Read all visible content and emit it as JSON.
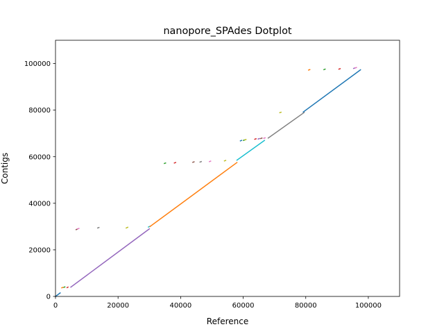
{
  "chart_data": {
    "type": "line",
    "title": "nanopore_SPAdes Dotplot",
    "xlabel": "Reference",
    "ylabel": "Contigs",
    "xlim": [
      0,
      110000
    ],
    "ylim": [
      0,
      110000
    ],
    "xticks": [
      0,
      20000,
      40000,
      60000,
      80000,
      100000
    ],
    "yticks": [
      0,
      20000,
      40000,
      60000,
      80000,
      100000
    ],
    "xtick_labels": [
      "0",
      "20000",
      "40000",
      "60000",
      "80000",
      "100000"
    ],
    "ytick_labels": [
      "0",
      "20000",
      "40000",
      "60000",
      "80000",
      "100000"
    ],
    "grid": false,
    "legend": "none",
    "segments": [
      {
        "x": [
          0,
          1500
        ],
        "y": [
          0,
          1500
        ],
        "color": "#1f77b4"
      },
      {
        "x": [
          2000,
          2400
        ],
        "y": [
          3700,
          3900
        ],
        "color": "#ff7f0e"
      },
      {
        "x": [
          2700,
          3000
        ],
        "y": [
          3900,
          4100
        ],
        "color": "#2ca02c"
      },
      {
        "x": [
          3700,
          4000
        ],
        "y": [
          3800,
          4000
        ],
        "color": "#d62728"
      },
      {
        "x": [
          4900,
          30000
        ],
        "y": [
          4000,
          29000
        ],
        "color": "#9467bd"
      },
      {
        "x": [
          6600,
          7000
        ],
        "y": [
          28700,
          28900
        ],
        "color": "#8c564b"
      },
      {
        "x": [
          7000,
          7500
        ],
        "y": [
          29000,
          29200
        ],
        "color": "#e377c2"
      },
      {
        "x": [
          13500,
          13900
        ],
        "y": [
          29400,
          29600
        ],
        "color": "#7f7f7f"
      },
      {
        "x": [
          22600,
          23100
        ],
        "y": [
          29400,
          29700
        ],
        "color": "#bcbd22"
      },
      {
        "x": [
          29700,
          30200
        ],
        "y": [
          29800,
          30100
        ],
        "color": "#17becf"
      },
      {
        "x": [
          30200,
          58000
        ],
        "y": [
          30000,
          57500
        ],
        "color": "#ff7f0e"
      },
      {
        "x": [
          34800,
          35200
        ],
        "y": [
          57100,
          57300
        ],
        "color": "#2ca02c"
      },
      {
        "x": [
          38000,
          38400
        ],
        "y": [
          57300,
          57500
        ],
        "color": "#d62728"
      },
      {
        "x": [
          43900,
          44300
        ],
        "y": [
          57600,
          57800
        ],
        "color": "#8c564b"
      },
      {
        "x": [
          46200,
          46600
        ],
        "y": [
          57700,
          57900
        ],
        "color": "#7f7f7f"
      },
      {
        "x": [
          49200,
          49600
        ],
        "y": [
          57900,
          58100
        ],
        "color": "#e377c2"
      },
      {
        "x": [
          54000,
          54400
        ],
        "y": [
          58200,
          58400
        ],
        "color": "#bcbd22"
      },
      {
        "x": [
          58000,
          66800
        ],
        "y": [
          58500,
          67000
        ],
        "color": "#17becf"
      },
      {
        "x": [
          59100,
          59500
        ],
        "y": [
          66800,
          67000
        ],
        "color": "#1f77b4"
      },
      {
        "x": [
          60100,
          60500
        ],
        "y": [
          67000,
          67200
        ],
        "color": "#2ca02c"
      },
      {
        "x": [
          60500,
          60900
        ],
        "y": [
          67200,
          67400
        ],
        "color": "#bcbd22"
      },
      {
        "x": [
          63700,
          64100
        ],
        "y": [
          67500,
          67700
        ],
        "color": "#d62728"
      },
      {
        "x": [
          64800,
          65200
        ],
        "y": [
          67600,
          67800
        ],
        "color": "#9467bd"
      },
      {
        "x": [
          65600,
          66000
        ],
        "y": [
          67800,
          68000
        ],
        "color": "#8c564b"
      },
      {
        "x": [
          66600,
          67000
        ],
        "y": [
          67900,
          68100
        ],
        "color": "#e377c2"
      },
      {
        "x": [
          68000,
          79500
        ],
        "y": [
          68000,
          79000
        ],
        "color": "#7f7f7f"
      },
      {
        "x": [
          71700,
          72100
        ],
        "y": [
          78900,
          79100
        ],
        "color": "#bcbd22"
      },
      {
        "x": [
          79200,
          97500
        ],
        "y": [
          79200,
          97300
        ],
        "color": "#1f77b4"
      },
      {
        "x": [
          80900,
          81300
        ],
        "y": [
          97200,
          97400
        ],
        "color": "#ff7f0e"
      },
      {
        "x": [
          85800,
          86200
        ],
        "y": [
          97400,
          97600
        ],
        "color": "#2ca02c"
      },
      {
        "x": [
          90600,
          91000
        ],
        "y": [
          97600,
          97800
        ],
        "color": "#d62728"
      },
      {
        "x": [
          95300,
          95700
        ],
        "y": [
          97900,
          98100
        ],
        "color": "#9467bd"
      },
      {
        "x": [
          95800,
          96200
        ],
        "y": [
          98100,
          98300
        ],
        "color": "#e377c2"
      }
    ]
  }
}
